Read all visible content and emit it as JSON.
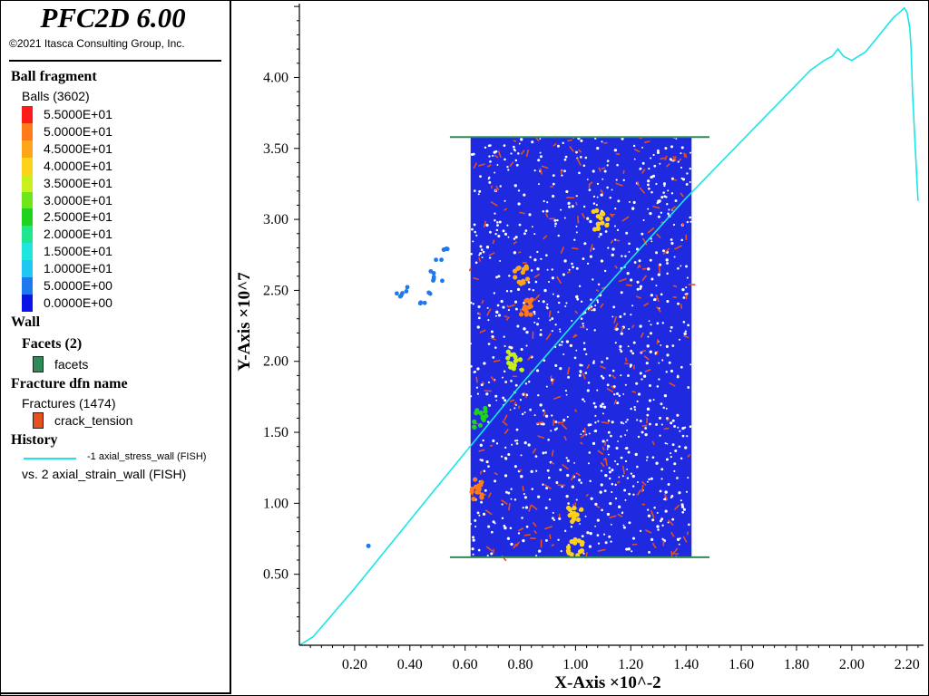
{
  "app": {
    "title": "PFC2D 6.00",
    "copyright": "©2021 Itasca Consulting Group, Inc."
  },
  "legend": {
    "ball_heading": "Ball fragment",
    "balls_label": "Balls (3602)",
    "scale": [
      {
        "label": "5.5000E+01",
        "color": "#ff1a1a"
      },
      {
        "label": "5.0000E+01",
        "color": "#ff7a1a"
      },
      {
        "label": "4.5000E+01",
        "color": "#ffa51a"
      },
      {
        "label": "4.0000E+01",
        "color": "#ffd21a"
      },
      {
        "label": "3.5000E+01",
        "color": "#c8f01a"
      },
      {
        "label": "3.0000E+01",
        "color": "#6ee61a"
      },
      {
        "label": "2.5000E+01",
        "color": "#1ed21e"
      },
      {
        "label": "2.0000E+01",
        "color": "#1ee68c"
      },
      {
        "label": "1.5000E+01",
        "color": "#1ee6dc"
      },
      {
        "label": "1.0000E+01",
        "color": "#1ec8f0"
      },
      {
        "label": "5.0000E+00",
        "color": "#1e78f0"
      },
      {
        "label": "0.0000E+00",
        "color": "#0a14e6"
      }
    ],
    "wall_heading": "Wall",
    "facets_heading": "Facets (2)",
    "facets_label": "facets",
    "facets_color": "#2e8b57",
    "fracture_heading": "Fracture dfn name",
    "fractures_label": "Fractures (1474)",
    "crack_label": "crack_tension",
    "crack_color": "#e8501e",
    "history_heading": "History",
    "history_series": "-1 axial_stress_wall (FISH)",
    "history_vs": "vs. 2 axial_strain_wall (FISH)",
    "history_color": "#19e6e6"
  },
  "chart_data": {
    "type": "line",
    "xlabel": "X-Axis ×10^-2",
    "ylabel": "Y-Axis ×10^7",
    "xlim": [
      0,
      2.26
    ],
    "ylim": [
      0,
      4.52
    ],
    "xticks": [
      "0.20",
      "0.40",
      "0.60",
      "0.80",
      "1.00",
      "1.20",
      "1.40",
      "1.60",
      "1.80",
      "2.00",
      "2.20"
    ],
    "yticks": [
      "0.50",
      "1.00",
      "1.50",
      "2.00",
      "2.50",
      "3.00",
      "3.50",
      "4.00"
    ],
    "series": [
      {
        "name": "-1 axial_stress_wall (FISH)",
        "color": "#19e6e6",
        "x": [
          0.0,
          0.05,
          0.2,
          0.5,
          0.8,
          1.0,
          1.2,
          1.4,
          1.6,
          1.8,
          1.85,
          1.9,
          1.93,
          1.95,
          1.97,
          2.0,
          2.05,
          2.1,
          2.15,
          2.18,
          2.19,
          2.2,
          2.21,
          2.215,
          2.22,
          2.23,
          2.24
        ],
        "y": [
          0.0,
          0.06,
          0.4,
          1.12,
          1.83,
          2.28,
          2.72,
          3.15,
          3.55,
          3.95,
          4.05,
          4.12,
          4.15,
          4.2,
          4.15,
          4.12,
          4.18,
          4.3,
          4.42,
          4.47,
          4.49,
          4.46,
          4.35,
          4.2,
          3.9,
          3.5,
          3.13
        ]
      }
    ],
    "specimen": {
      "x_range": [
        0.62,
        1.42
      ],
      "y_range": [
        0.62,
        3.58
      ],
      "platens": [
        {
          "x": [
            0.545,
            1.485
          ],
          "y": 3.58
        },
        {
          "x": [
            0.545,
            1.485
          ],
          "y": 0.62
        }
      ]
    }
  }
}
